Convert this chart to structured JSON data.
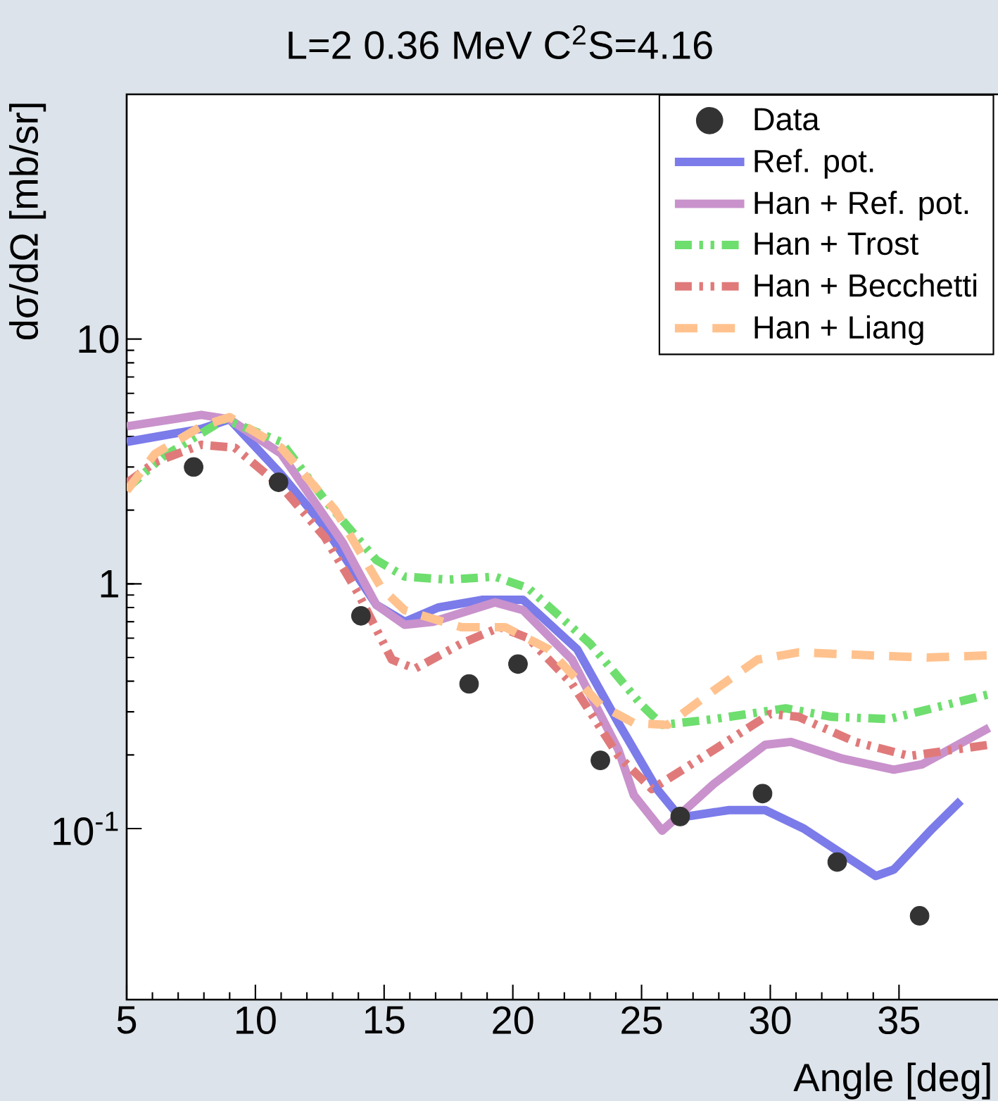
{
  "chart_data": {
    "type": "line",
    "title": "L=2 0.36 MeV C$^{2}$S=4.16",
    "xlabel": "Angle [deg]",
    "ylabel": "dσ/dΩ [mb/sr]",
    "xlim": [
      5,
      38.9
    ],
    "xticks": [
      5,
      10,
      15,
      20,
      25,
      30,
      35
    ],
    "ylim": [
      0.02,
      100
    ],
    "yticks": [
      {
        "value": 0.1,
        "label": "10$^{-1}$"
      },
      1,
      10
    ],
    "log": "y",
    "legend": "top right",
    "series": [
      {
        "name": "Data",
        "type": "scatter",
        "marker": "circle",
        "color": "#333333",
        "x": [
          7.6,
          10.9,
          14.1,
          18.3,
          20.2,
          23.4,
          26.5,
          29.7,
          32.6,
          35.8
        ],
        "values": [
          3.0,
          2.6,
          0.74,
          0.39,
          0.47,
          0.19,
          0.112,
          0.139,
          0.073,
          0.044
        ]
      },
      {
        "name": "Ref. pot.",
        "line_style": "solid",
        "color": "#7b7bea",
        "x": [
          5,
          7.9,
          9.0,
          11.0,
          12.7,
          14.7,
          15.8,
          17.1,
          18.8,
          20.4,
          22.5,
          24.1,
          25.6,
          26.5,
          28.4,
          29.8,
          31.3,
          34.1,
          34.8,
          36.3,
          37.4
        ],
        "values": [
          3.8,
          4.3,
          4.7,
          2.8,
          1.7,
          0.82,
          0.7,
          0.8,
          0.86,
          0.86,
          0.54,
          0.27,
          0.145,
          0.111,
          0.119,
          0.119,
          0.1,
          0.064,
          0.068,
          0.1,
          0.13
        ]
      },
      {
        "name": "Han + Ref. pot.",
        "line_style": "solid",
        "color": "#c992cc",
        "x": [
          5,
          7.9,
          9.0,
          11.0,
          13.4,
          14.7,
          15.8,
          16.9,
          19.3,
          20.4,
          22.3,
          24.1,
          24.7,
          25.8,
          27.8,
          29.8,
          30.8,
          32.8,
          34.8,
          35.9,
          38.5
        ],
        "values": [
          4.4,
          4.9,
          4.7,
          3.4,
          1.47,
          0.82,
          0.68,
          0.7,
          0.84,
          0.78,
          0.49,
          0.21,
          0.137,
          0.098,
          0.152,
          0.22,
          0.226,
          0.193,
          0.174,
          0.183,
          0.258
        ]
      },
      {
        "name": "Han + Trost",
        "line_style": "dotted",
        "color": "#6ede6e",
        "x": [
          5,
          6.4,
          8.8,
          11.0,
          12.7,
          14.7,
          15.8,
          17.5,
          19.3,
          20.6,
          23.0,
          25.0,
          25.8,
          27.8,
          30.6,
          32.4,
          34.6,
          36.3,
          38.5
        ],
        "values": [
          2.45,
          3.3,
          4.7,
          3.8,
          2.2,
          1.25,
          1.07,
          1.04,
          1.07,
          0.96,
          0.57,
          0.32,
          0.265,
          0.28,
          0.31,
          0.286,
          0.28,
          0.31,
          0.354
        ]
      },
      {
        "name": "Han + Becchetti",
        "line_style": "dotted",
        "color": "#e07a7a",
        "x": [
          5,
          6.1,
          7.9,
          9.2,
          11.0,
          12.7,
          14.0,
          15.3,
          16.2,
          18.0,
          19.5,
          20.6,
          22.3,
          24.1,
          25.4,
          27.1,
          30.0,
          31.1,
          33.3,
          35.4,
          38.5
        ],
        "values": [
          2.58,
          3.14,
          3.7,
          3.6,
          2.5,
          1.55,
          0.91,
          0.49,
          0.45,
          0.57,
          0.665,
          0.6,
          0.39,
          0.198,
          0.145,
          0.188,
          0.294,
          0.286,
          0.226,
          0.198,
          0.22
        ]
      },
      {
        "name": "Han + Liang",
        "line_style": "dashed",
        "color": "#ffc28e",
        "x": [
          5,
          6.1,
          7.9,
          9.0,
          11.0,
          13.1,
          14.9,
          15.8,
          18.0,
          19.7,
          21.4,
          23.4,
          24.7,
          26.0,
          27.6,
          29.5,
          31.1,
          33.9,
          36.1,
          38.5
        ],
        "values": [
          2.4,
          3.4,
          4.4,
          4.8,
          3.6,
          2.0,
          0.96,
          0.78,
          0.665,
          0.665,
          0.54,
          0.32,
          0.27,
          0.265,
          0.354,
          0.49,
          0.525,
          0.51,
          0.5,
          0.51
        ]
      }
    ]
  }
}
